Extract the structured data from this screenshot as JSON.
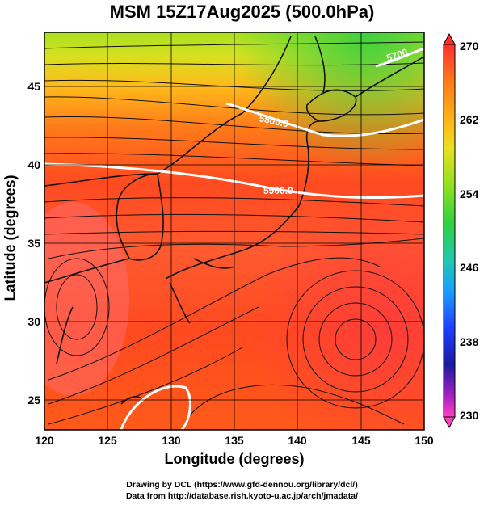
{
  "title": "MSM 15Z17Aug2025 (500.0hPa)",
  "xlabel": "Longitude (degrees)",
  "ylabel": "Latitude  (degrees)",
  "x_ticks": [
    "120",
    "125",
    "130",
    "135",
    "140",
    "145",
    "150"
  ],
  "y_ticks": [
    "25",
    "30",
    "35",
    "40",
    "45"
  ],
  "colorbar": {
    "labels": [
      "270",
      "262",
      "254",
      "246",
      "238",
      "230"
    ],
    "colors": [
      "#ff4040",
      "#ff8c1a",
      "#ffd21a",
      "#b6e620",
      "#38d040",
      "#20c8b0",
      "#1a8cff",
      "#2040ff",
      "#1a1ab0",
      "#a020c0",
      "#ff40c0"
    ]
  },
  "contours": [
    {
      "label": "5900.0"
    },
    {
      "label": "5800.0"
    },
    {
      "label": "5700"
    }
  ],
  "credits": {
    "line1": "Drawing by DCL (https://www.gfd-dennou.org/library/dcl/)",
    "line2": "Data from http://database.rish.kyoto-u.ac.jp/arch/jmadata/"
  }
}
